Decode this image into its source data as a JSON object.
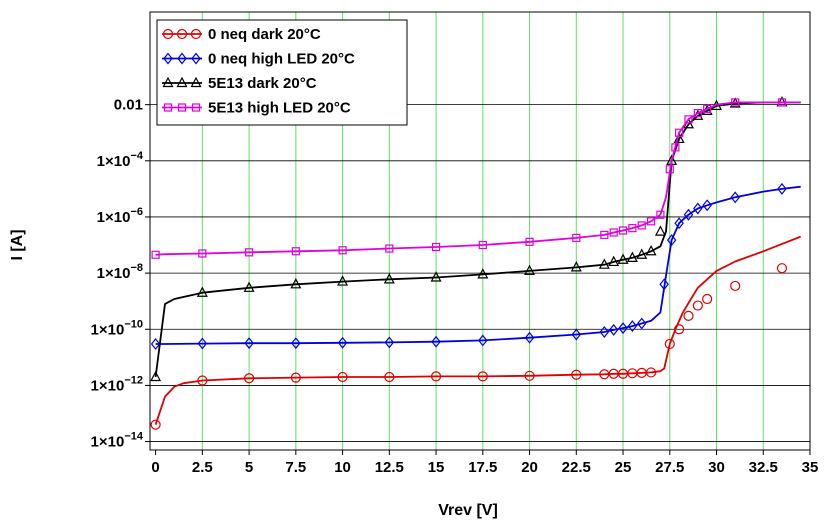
{
  "chart_data": {
    "type": "line",
    "xlabel": "Vrev [V]",
    "ylabel": "I [A]",
    "xlim": [
      -0.3,
      35
    ],
    "ylim_log10": [
      -14.3,
      1.3
    ],
    "y_scale": "log",
    "grid": {
      "vertical": true,
      "vertical_color": "#66dd66",
      "horizontal": true,
      "horizontal_color": "#000000"
    },
    "legend_position": "top-left",
    "x_ticks": [
      "0",
      "2.5",
      "5",
      "7.5",
      "10",
      "12.5",
      "15",
      "17.5",
      "20",
      "22.5",
      "25",
      "27.5",
      "30",
      "32.5",
      "35"
    ],
    "x_tick_values": [
      0,
      2.5,
      5,
      7.5,
      10,
      12.5,
      15,
      17.5,
      20,
      22.5,
      25,
      27.5,
      30,
      32.5,
      35
    ],
    "y_ticks": [
      {
        "value": 0.01,
        "text": "0.01",
        "mult": "",
        "exp": ""
      },
      {
        "value": 0.0001,
        "text": "",
        "mult": "1×10",
        "exp": "−4"
      },
      {
        "value": 1e-06,
        "text": "",
        "mult": "1×10",
        "exp": "−6"
      },
      {
        "value": 1e-08,
        "text": "",
        "mult": "1×10",
        "exp": "−8"
      },
      {
        "value": 1e-10,
        "text": "",
        "mult": "1×10",
        "exp": "−10"
      },
      {
        "value": 1e-12,
        "text": "",
        "mult": "1×10",
        "exp": "−12"
      },
      {
        "value": 1e-14,
        "text": "",
        "mult": "1×10",
        "exp": "−14"
      }
    ],
    "series": [
      {
        "name": "0 neq dark 20°C",
        "color": "#e00000",
        "marker": "circle",
        "x": [
          0,
          0.5,
          1,
          1.5,
          2.5,
          5,
          7.5,
          10,
          12.5,
          15,
          17.5,
          20,
          22.5,
          24,
          24.5,
          25,
          25.5,
          26,
          26.5,
          27,
          27.2,
          27.5,
          27.8,
          28.2,
          28.6,
          29,
          29.5,
          30,
          31,
          32.5,
          33.5,
          34.5
        ],
        "y": [
          4e-14,
          4e-13,
          9e-13,
          1.2e-12,
          1.5e-12,
          1.8e-12,
          1.9e-12,
          2e-12,
          2e-12,
          2.1e-12,
          2.1e-12,
          2.2e-12,
          2.4e-12,
          2.5e-12,
          2.6e-12,
          2.6e-12,
          2.7e-12,
          2.8e-12,
          2.9e-12,
          3.2e-12,
          4e-12,
          3e-11,
          1e-10,
          4e-10,
          1.1e-09,
          3e-09,
          6e-09,
          1.2e-08,
          2.6e-08,
          6e-08,
          1.1e-07,
          2e-07
        ],
        "mx": [
          0,
          2.5,
          5,
          7.5,
          10,
          12.5,
          15,
          17.5,
          20,
          22.5,
          24,
          24.5,
          25,
          25.5,
          26,
          26.5,
          27.5,
          28,
          28.5,
          29,
          29.5,
          31,
          33.5
        ],
        "my": [
          4e-14,
          1.5e-12,
          1.8e-12,
          1.9e-12,
          2e-12,
          2e-12,
          2.1e-12,
          2.1e-12,
          2.2e-12,
          2.4e-12,
          2.5e-12,
          2.6e-12,
          2.6e-12,
          2.7e-12,
          2.8e-12,
          2.9e-12,
          3e-11,
          1e-10,
          3e-10,
          7e-10,
          1.2e-09,
          3.5e-09,
          1.5e-08
        ]
      },
      {
        "name": "0 neq high LED 20°C",
        "color": "#0000e0",
        "marker": "diamond",
        "x": [
          0,
          0.5,
          2.5,
          5,
          7.5,
          10,
          12.5,
          15,
          17.5,
          20,
          22.5,
          24,
          24.5,
          25,
          25.5,
          26,
          26.5,
          27,
          27.3,
          27.6,
          28,
          28.5,
          29,
          29.5,
          30,
          31,
          32.5,
          33.5,
          34.5
        ],
        "y": [
          3e-11,
          3e-11,
          3.1e-11,
          3.2e-11,
          3.2e-11,
          3.3e-11,
          3.4e-11,
          3.6e-11,
          4e-11,
          5e-11,
          6.5e-11,
          8e-11,
          9.5e-11,
          1.1e-10,
          1.3e-10,
          1.6e-10,
          2e-10,
          4e-10,
          8e-09,
          1.5e-07,
          6e-07,
          1.2e-06,
          2e-06,
          2.6e-06,
          3.3e-06,
          5e-06,
          8e-06,
          1e-05,
          1.2e-05
        ],
        "mx": [
          0,
          2.5,
          5,
          7.5,
          10,
          12.5,
          15,
          17.5,
          20,
          22.5,
          24,
          24.5,
          25,
          25.5,
          26,
          27.2,
          27.6,
          28,
          28.5,
          29,
          29.5,
          31,
          33.5
        ],
        "my": [
          3e-11,
          3.1e-11,
          3.2e-11,
          3.2e-11,
          3.3e-11,
          3.4e-11,
          3.6e-11,
          4e-11,
          5e-11,
          6.5e-11,
          8e-11,
          9.5e-11,
          1.1e-10,
          1.3e-10,
          1.6e-10,
          4e-09,
          1.5e-07,
          6e-07,
          1.2e-06,
          2e-06,
          2.6e-06,
          5e-06,
          1e-05
        ]
      },
      {
        "name": "5E13 dark 20°C",
        "color": "#000000",
        "marker": "triangle",
        "x": [
          0,
          0.5,
          1,
          2.5,
          5,
          7.5,
          10,
          12.5,
          15,
          17.5,
          20,
          22.5,
          24,
          24.5,
          25,
          25.5,
          26,
          26.5,
          27,
          27.3,
          27.6,
          28,
          28.5,
          29,
          29.5,
          30,
          30.5,
          31,
          32.5,
          33.5,
          34.5
        ],
        "y": [
          2e-12,
          8e-10,
          1.2e-09,
          2e-09,
          3e-09,
          4e-09,
          5e-09,
          6e-09,
          7e-09,
          9e-09,
          1.2e-08,
          1.6e-08,
          2e-08,
          2.5e-08,
          3e-08,
          3.5e-08,
          4.5e-08,
          6e-08,
          9e-08,
          3e-07,
          0.0001,
          0.0006,
          0.002,
          0.004,
          0.006,
          0.009,
          0.01,
          0.011,
          0.012,
          0.012,
          0.012
        ],
        "mx": [
          0,
          2.5,
          5,
          7.5,
          10,
          12.5,
          15,
          17.5,
          20,
          22.5,
          24,
          24.5,
          25,
          25.5,
          26,
          26.5,
          27,
          27.6,
          28,
          28.5,
          29,
          29.5,
          30,
          31,
          33.5
        ],
        "my": [
          2e-12,
          2e-09,
          3e-09,
          4e-09,
          5e-09,
          6e-09,
          7e-09,
          9e-09,
          1.2e-08,
          1.6e-08,
          2e-08,
          2.5e-08,
          3e-08,
          3.5e-08,
          4.5e-08,
          6e-08,
          3e-07,
          0.0001,
          0.0006,
          0.002,
          0.004,
          0.006,
          0.009,
          0.011,
          0.012
        ]
      },
      {
        "name": "5E13 high LED 20°C",
        "color": "#e000e0",
        "marker": "square",
        "x": [
          0,
          0.5,
          2.5,
          5,
          7.5,
          10,
          12.5,
          15,
          17.5,
          20,
          22.5,
          24,
          24.5,
          25,
          25.5,
          26,
          26.5,
          27,
          27.3,
          27.6,
          28,
          28.5,
          29,
          29.5,
          30,
          30.5,
          31,
          32.5,
          33.5,
          34.5
        ],
        "y": [
          4.5e-08,
          4.7e-08,
          5e-08,
          5.5e-08,
          6e-08,
          6.5e-08,
          7.5e-08,
          8.5e-08,
          1e-07,
          1.3e-07,
          1.8e-07,
          2.3e-07,
          2.8e-07,
          3.3e-07,
          4e-07,
          5e-07,
          7e-07,
          1.2e-06,
          5e-06,
          0.0001,
          0.001,
          0.003,
          0.005,
          0.007,
          0.01,
          0.011,
          0.012,
          0.012,
          0.012,
          0.012
        ],
        "mx": [
          0,
          2.5,
          5,
          7.5,
          10,
          12.5,
          15,
          17.5,
          20,
          22.5,
          24,
          24.5,
          25,
          25.5,
          26,
          26.5,
          27,
          27.5,
          27.8,
          28,
          28.5,
          29,
          29.5,
          31,
          33.5
        ],
        "my": [
          4.5e-08,
          5e-08,
          5.5e-08,
          6e-08,
          6.5e-08,
          7.5e-08,
          8.5e-08,
          1e-07,
          1.3e-07,
          1.8e-07,
          2.3e-07,
          2.8e-07,
          3.3e-07,
          4e-07,
          5e-07,
          7e-07,
          1.2e-06,
          5e-05,
          0.0003,
          0.001,
          0.003,
          0.005,
          0.007,
          0.012,
          0.012
        ]
      }
    ]
  }
}
